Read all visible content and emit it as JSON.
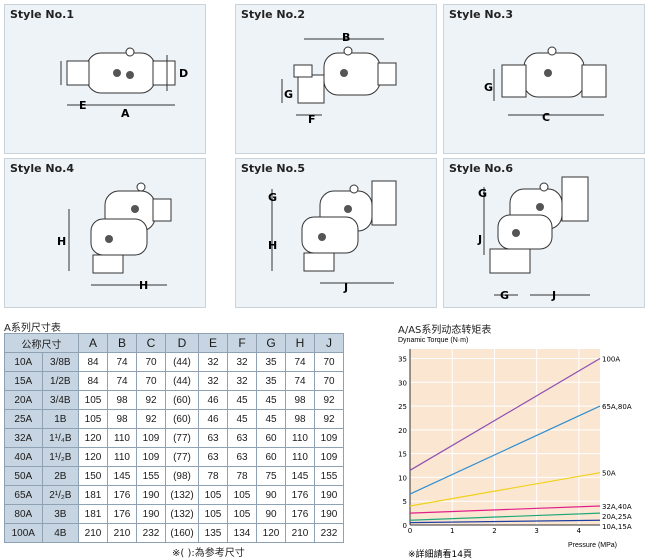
{
  "styles": [
    {
      "title": "Style No.1",
      "dims": [
        "E",
        "D",
        "A"
      ]
    },
    {
      "title": "Style No.2",
      "dims": [
        "B",
        "G",
        "F"
      ]
    },
    {
      "title": "Style No.3",
      "dims": [
        "G",
        "C"
      ]
    },
    {
      "title": "Style No.4",
      "dims": [
        "H",
        "H"
      ]
    },
    {
      "title": "Style No.5",
      "dims": [
        "G",
        "H",
        "J"
      ]
    },
    {
      "title": "Style No.6",
      "dims": [
        "G",
        "J",
        "G",
        "J"
      ]
    }
  ],
  "table": {
    "title": "A系列尺寸表",
    "size_header": "公称尺寸",
    "columns": [
      "A",
      "B",
      "C",
      "D",
      "E",
      "F",
      "G",
      "H",
      "J"
    ],
    "rows": [
      {
        "size": "10A",
        "inch": "3/8B",
        "vals": [
          "84",
          "74",
          "70",
          "(44)",
          "32",
          "32",
          "35",
          "74",
          "70"
        ]
      },
      {
        "size": "15A",
        "inch": "1/2B",
        "vals": [
          "84",
          "74",
          "70",
          "(44)",
          "32",
          "32",
          "35",
          "74",
          "70"
        ]
      },
      {
        "size": "20A",
        "inch": "3/4B",
        "vals": [
          "105",
          "98",
          "92",
          "(60)",
          "46",
          "45",
          "45",
          "98",
          "92"
        ]
      },
      {
        "size": "25A",
        "inch": "1B",
        "vals": [
          "105",
          "98",
          "92",
          "(60)",
          "46",
          "45",
          "45",
          "98",
          "92"
        ]
      },
      {
        "size": "32A",
        "inch": "1¹/₄B",
        "vals": [
          "120",
          "110",
          "109",
          "(77)",
          "63",
          "63",
          "60",
          "110",
          "109"
        ]
      },
      {
        "size": "40A",
        "inch": "1¹/₂B",
        "vals": [
          "120",
          "110",
          "109",
          "(77)",
          "63",
          "63",
          "60",
          "110",
          "109"
        ]
      },
      {
        "size": "50A",
        "inch": "2B",
        "vals": [
          "150",
          "145",
          "155",
          "(98)",
          "78",
          "78",
          "75",
          "145",
          "155"
        ]
      },
      {
        "size": "65A",
        "inch": "2¹/₂B",
        "vals": [
          "181",
          "176",
          "190",
          "(132)",
          "105",
          "105",
          "90",
          "176",
          "190"
        ]
      },
      {
        "size": "80A",
        "inch": "3B",
        "vals": [
          "181",
          "176",
          "190",
          "(132)",
          "105",
          "105",
          "90",
          "176",
          "190"
        ]
      },
      {
        "size": "100A",
        "inch": "4B",
        "vals": [
          "210",
          "210",
          "232",
          "(160)",
          "135",
          "134",
          "120",
          "210",
          "232"
        ]
      }
    ],
    "note": "※( ):為参考尺寸"
  },
  "chart_data": {
    "type": "line",
    "title": "A/AS系列动态转矩表",
    "ylabel": "Dynamic Torque (N·m)",
    "xlabel": "Pressure (MPa)",
    "xlim": [
      0,
      4.5
    ],
    "ylim": [
      0,
      37
    ],
    "xticks": [
      "0",
      "1",
      "2",
      "3",
      "4"
    ],
    "yticks": [
      "0",
      "5",
      "10",
      "15",
      "20",
      "25",
      "30",
      "35"
    ],
    "x": [
      0,
      4.5
    ],
    "series": [
      {
        "name": "100A",
        "values": [
          11.5,
          35
        ],
        "color": "#8e4fb0"
      },
      {
        "name": "65A,80A",
        "values": [
          6.5,
          25
        ],
        "color": "#2f8fd0"
      },
      {
        "name": "50A",
        "values": [
          4,
          11
        ],
        "color": "#f0d21a"
      },
      {
        "name": "32A,40A",
        "values": [
          2.5,
          4
        ],
        "color": "#e0208a"
      },
      {
        "name": "20A,25A",
        "values": [
          1,
          2.5
        ],
        "color": "#1fa87a"
      },
      {
        "name": "10A,15A",
        "values": [
          0.5,
          1
        ],
        "color": "#2040a0"
      }
    ],
    "note": "※詳細請看14頁"
  }
}
